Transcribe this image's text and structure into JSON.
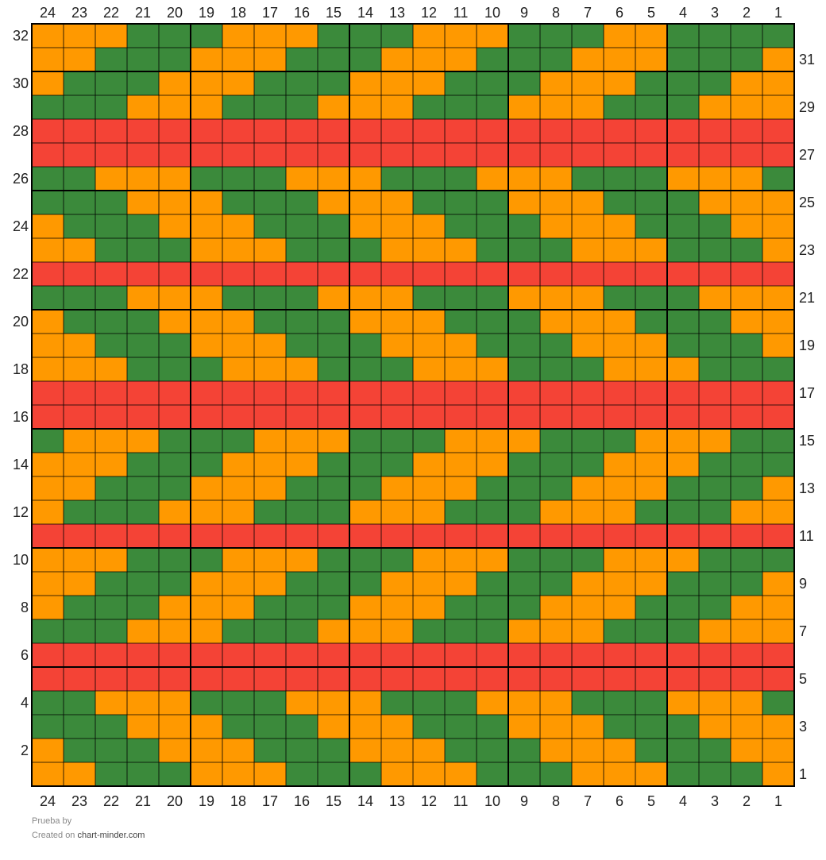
{
  "chart_data": {
    "type": "heatmap",
    "columns": 24,
    "rows": 32,
    "column_labels": [
      24,
      23,
      22,
      21,
      20,
      19,
      18,
      17,
      16,
      15,
      14,
      13,
      12,
      11,
      10,
      9,
      8,
      7,
      6,
      5,
      4,
      3,
      2,
      1
    ],
    "row_labels_left": [
      32,
      30,
      28,
      26,
      24,
      22,
      20,
      18,
      16,
      14,
      12,
      10,
      8,
      6,
      4,
      2
    ],
    "row_labels_right": [
      31,
      29,
      27,
      25,
      23,
      21,
      19,
      17,
      15,
      13,
      11,
      9,
      7,
      5,
      3,
      1
    ],
    "palette": {
      "O": "#ff9900",
      "G": "#3b8a3b",
      "R": "#f44336"
    },
    "grid_rows_top_to_bottom": [
      "OOOGGGOOOGGGOOOGGGOOGGGG",
      "OOGGGOOOGGGOOOGGGOOOGGGO",
      "OGGGOOOGGGOOOGGGOOOGGGOO",
      "GGGOOOGGGOOOGGGOOOGGGOOO",
      "RRRRRRRRRRRRRRRRRRRRRRRR",
      "RRRRRRRRRRRRRRRRRRRRRRRR",
      "GGOOOGGGOOOGGGOOOGGGOOOG",
      "GGGOOOGGGOOOGGGOOOGGGOOO",
      "OGGGOOOGGGOOOGGGOOOGGGOO",
      "OOGGGOOOGGGOOOGGGOOOGGGO",
      "RRRRRRRRRRRRRRRRRRRRRRRR",
      "GGGOOOGGGOOOGGGOOOGGGOOO",
      "OGGGOOOGGGOOOGGGOOOGGGOO",
      "OOGGGOOOGGGOOOGGGOOOGGGO",
      "OOOGGGOOOGGGOOOGGGOOOGGG",
      "RRRRRRRRRRRRRRRRRRRRRRRR",
      "RRRRRRRRRRRRRRRRRRRRRRRR",
      "GOOOGGGOOOGGGOOOGGGOOOGG",
      "OOOGGGOOOGGGOOOGGGOOOGGG",
      "OOGGGOOOGGGOOOGGGOOOGGGO",
      "OGGGOOOGGGOOOGGGOOOGGGOO",
      "RRRRRRRRRRRRRRRRRRRRRRRR",
      "OOOGGGOOOGGGOOOGGGOOOGGG",
      "OOGGGOOOGGGOOOGGGOOOGGGO",
      "OGGGOOOGGGOOOGGGOOOGGGOO",
      "GGGOOOGGGOOOGGGOOOGGGOOO",
      "RRRRRRRRRRRRRRRRRRRRRRRR",
      "RRRRRRRRRRRRRRRRRRRRRRRR",
      "GGOOOGGGOOOGGGOOOGGGOOOG",
      "GGGOOOGGGOOOGGGOOOGGGOOO",
      "OGGGOOOGGGOOOGGGOOOGGGOO",
      "OOGGGOOOGGGOOOGGGOOOGGGO"
    ]
  },
  "footer": {
    "title": "Prueba",
    "by": "by",
    "created_on": "Created on",
    "site": "chart-minder.com"
  }
}
